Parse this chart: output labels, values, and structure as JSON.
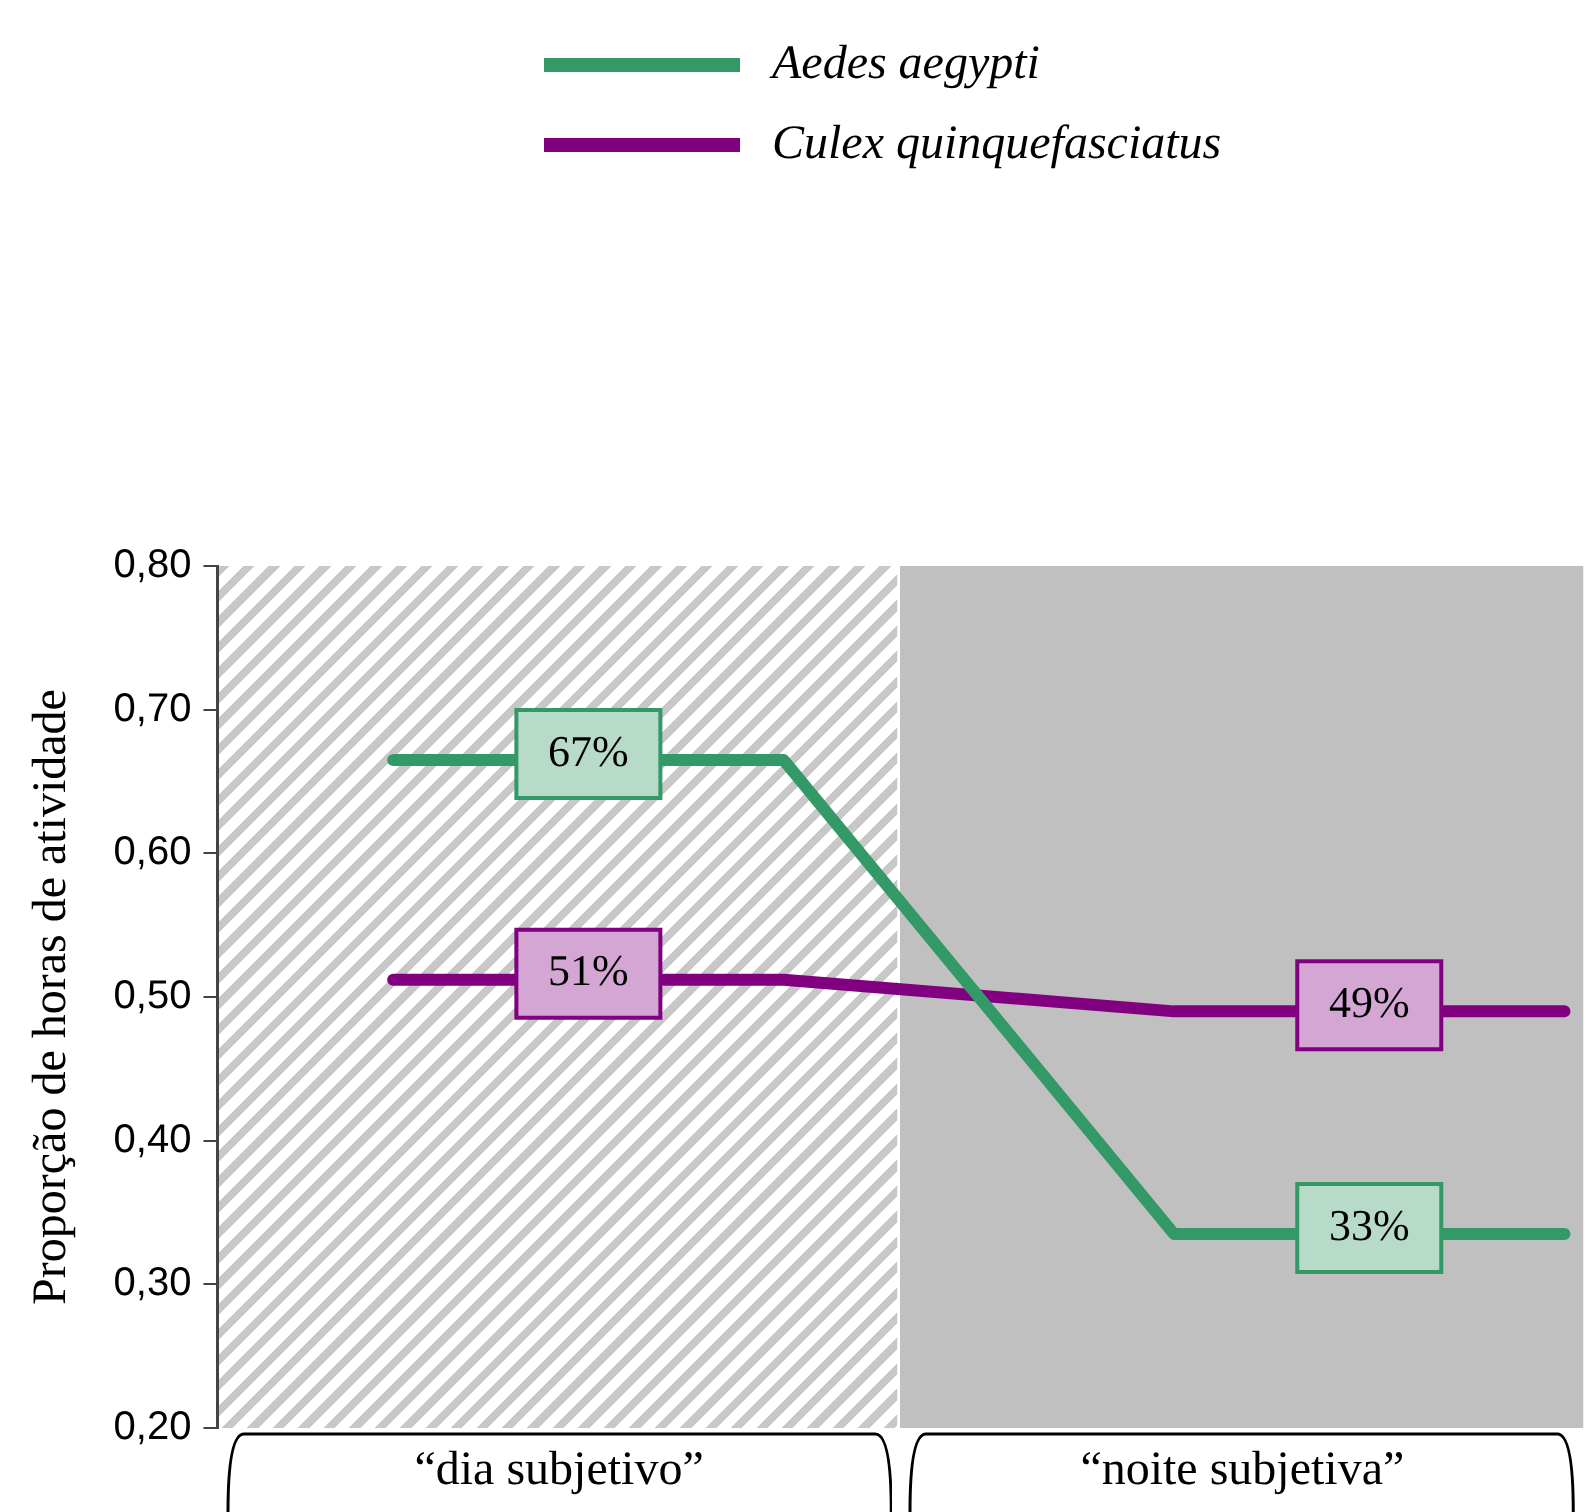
{
  "chart_data": {
    "type": "line",
    "ylabel": "Proporção de horas de atividade",
    "categories": [
      null,
      null,
      null,
      null
    ],
    "ylim": [
      0.2,
      0.8
    ],
    "yticks": [
      {
        "value": 0.2,
        "label": "0,20"
      },
      {
        "value": 0.3,
        "label": "0,30"
      },
      {
        "value": 0.4,
        "label": "0,40"
      },
      {
        "value": 0.5,
        "label": "0,50"
      },
      {
        "value": 0.6,
        "label": "0,60"
      },
      {
        "value": 0.7,
        "label": "0,70"
      },
      {
        "value": 0.8,
        "label": "0,80"
      }
    ],
    "tick_labels": "y",
    "grid": false,
    "legend": "top",
    "marker": "none",
    "line_style": "solid",
    "series": [
      {
        "name": "Aedes aegypti",
        "color": "#339966",
        "values": [
          0.665,
          0.665,
          0.335,
          0.335
        ]
      },
      {
        "name": "Culex quinquefasciatus",
        "color": "#800080",
        "values": [
          0.512,
          0.512,
          0.49,
          0.49
        ]
      }
    ],
    "annotations": [
      {
        "text": "67%",
        "y": 0.665
      },
      {
        "text": "51%",
        "y": 0.512
      },
      {
        "text": "49%",
        "y": 0.49
      },
      {
        "text": "33%",
        "y": 0.335
      },
      "“dia subjetivo”",
      "“noite subjetiva”"
    ]
  }
}
